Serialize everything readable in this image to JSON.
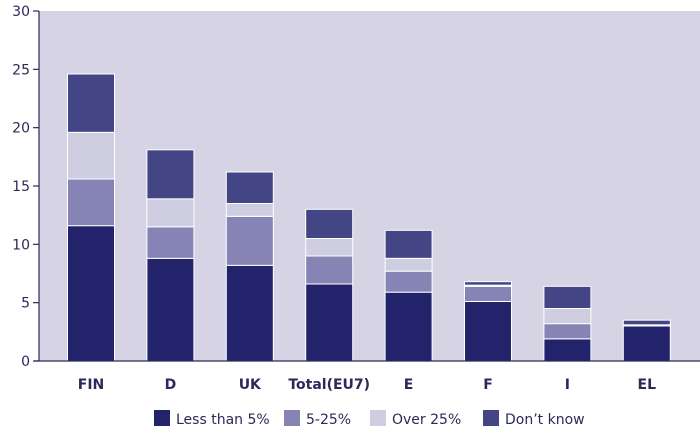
{
  "chart_data": {
    "type": "bar",
    "stacked": true,
    "categories": [
      "FIN",
      "D",
      "UK",
      "Total(EU7)",
      "E",
      "F",
      "I",
      "EL"
    ],
    "series": [
      {
        "name": "Less than 5%",
        "color": "#22236a",
        "values": [
          11.6,
          8.8,
          8.2,
          6.6,
          5.9,
          5.1,
          1.9,
          3.0
        ]
      },
      {
        "name": "5-25%",
        "color": "#8584b5",
        "values": [
          4.0,
          2.7,
          4.2,
          2.4,
          1.8,
          1.3,
          1.3,
          0.0
        ]
      },
      {
        "name": "Over 25%",
        "color": "#cfcde0",
        "values": [
          4.0,
          2.4,
          1.1,
          1.5,
          1.1,
          0.1,
          1.3,
          0.1
        ]
      },
      {
        "name": "Don’t know",
        "color": "#434584",
        "values": [
          5.0,
          4.2,
          2.7,
          2.5,
          2.4,
          0.3,
          1.9,
          0.4
        ]
      }
    ],
    "ylim": [
      0,
      30
    ],
    "yticks": [
      0,
      5,
      10,
      15,
      20,
      25,
      30
    ],
    "grid": false,
    "plot_background": "#d6d3e4",
    "legend_position": "bottom"
  }
}
